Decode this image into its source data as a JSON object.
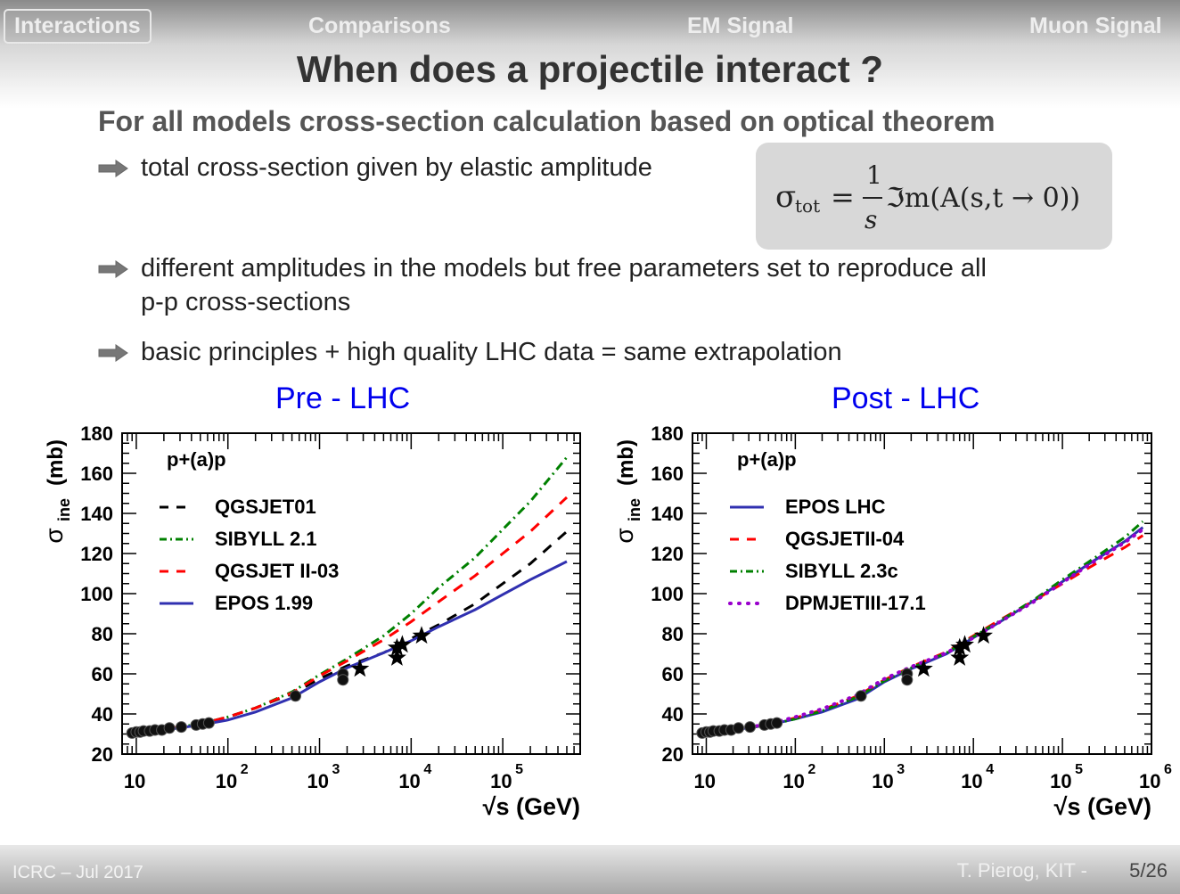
{
  "nav": {
    "items": [
      "Interactions",
      "Comparisons",
      "EM Signal",
      "Muon Signal"
    ],
    "active": "Interactions"
  },
  "slide": {
    "title": "When does a projectile interact ?",
    "subtitle": "For all models cross-section calculation based on optical theorem",
    "bullets": [
      "total cross-section given by elastic amplitude",
      "different amplitudes in the models but free parameters set to reproduce all",
      "p-p cross-sections",
      "basic principles + high quality LHC data = same extrapolation"
    ],
    "formula": {
      "lhs": "σ",
      "lhs_sub": "tot",
      "eq": "=",
      "num": "1",
      "den": "s",
      "rhs": "ℑm(A(s,t → 0))"
    }
  },
  "chart_data": [
    {
      "type": "line",
      "title": "Pre - LHC",
      "xlabel": "√s (GeV)",
      "ylabel": "σ",
      "ylabel_sub": "ine",
      "ylabel_unit": "(mb)",
      "xscale": "log",
      "xlim": [
        7,
        700000
      ],
      "ylim": [
        20,
        180
      ],
      "xticks": [
        {
          "base": "10",
          "exp": ""
        },
        {
          "base": "10",
          "exp": "2"
        },
        {
          "base": "10",
          "exp": "3"
        },
        {
          "base": "10",
          "exp": "4"
        },
        {
          "base": "10",
          "exp": "5"
        }
      ],
      "yticks": [
        20,
        40,
        60,
        80,
        100,
        120,
        140,
        160,
        180
      ],
      "legend_header": "p+(a)p",
      "legend_position": "top-left",
      "series": [
        {
          "name": "QGSJET01",
          "style": "dashed",
          "color": "#000000",
          "x": [
            10,
            20,
            50,
            100,
            200,
            500,
            1000,
            2000,
            5000,
            10000,
            20000,
            50000,
            100000,
            200000,
            500000
          ],
          "y": [
            31,
            32.5,
            35,
            38.5,
            43,
            50,
            57.5,
            64,
            70.5,
            77.5,
            84.5,
            95,
            105,
            115,
            131
          ]
        },
        {
          "name": "SIBYLL 2.1",
          "style": "dashdot",
          "color": "#008000",
          "x": [
            10,
            20,
            50,
            100,
            200,
            500,
            1000,
            2000,
            5000,
            10000,
            20000,
            50000,
            100000,
            200000,
            500000
          ],
          "y": [
            31,
            32.5,
            35,
            38.5,
            43,
            51,
            59.5,
            67.5,
            79,
            90,
            103,
            118,
            132,
            146,
            168
          ]
        },
        {
          "name": "QGSJET II-03",
          "style": "dashed",
          "color": "#ff0000",
          "x": [
            10,
            20,
            50,
            100,
            200,
            500,
            1000,
            2000,
            5000,
            10000,
            20000,
            50000,
            100000,
            200000,
            500000
          ],
          "y": [
            31,
            32.5,
            35,
            38.5,
            43,
            50.5,
            59,
            66.5,
            77,
            86,
            96,
            109,
            120,
            131,
            148
          ]
        },
        {
          "name": "EPOS 1.99",
          "style": "solid",
          "color": "#3030b0",
          "x": [
            10,
            20,
            50,
            100,
            200,
            500,
            1000,
            2000,
            5000,
            10000,
            20000,
            50000,
            100000,
            200000,
            500000
          ],
          "y": [
            31,
            32,
            34.5,
            37,
            41,
            48,
            56,
            63,
            70.5,
            76.5,
            83.5,
            92,
            99.5,
            107,
            116
          ]
        }
      ],
      "points": [
        {
          "x": 9,
          "y": 30.5
        },
        {
          "x": 10,
          "y": 31
        },
        {
          "x": 11,
          "y": 31
        },
        {
          "x": 12,
          "y": 31.5
        },
        {
          "x": 14,
          "y": 31.5
        },
        {
          "x": 16,
          "y": 32
        },
        {
          "x": 19,
          "y": 32
        },
        {
          "x": 23,
          "y": 33
        },
        {
          "x": 31,
          "y": 33.5
        },
        {
          "x": 45,
          "y": 34.5
        },
        {
          "x": 53,
          "y": 35
        },
        {
          "x": 62,
          "y": 35.5
        },
        {
          "x": 546,
          "y": 49
        },
        {
          "x": 1800,
          "y": 60
        },
        {
          "x": 1800,
          "y": 57
        }
      ],
      "stars": [
        {
          "x": 2760,
          "y": 62.5
        },
        {
          "x": 7000,
          "y": 73
        },
        {
          "x": 7000,
          "y": 68
        },
        {
          "x": 8000,
          "y": 74.5
        },
        {
          "x": 13000,
          "y": 79
        }
      ]
    },
    {
      "type": "line",
      "title": "Post - LHC",
      "xlabel": "√s (GeV)",
      "ylabel": "σ",
      "ylabel_sub": "ine",
      "ylabel_unit": "(mb)",
      "xscale": "log",
      "xlim": [
        7,
        1000000
      ],
      "ylim": [
        20,
        180
      ],
      "xticks": [
        {
          "base": "10",
          "exp": ""
        },
        {
          "base": "10",
          "exp": "2"
        },
        {
          "base": "10",
          "exp": "3"
        },
        {
          "base": "10",
          "exp": "4"
        },
        {
          "base": "10",
          "exp": "5"
        },
        {
          "base": "10",
          "exp": "6"
        }
      ],
      "yticks": [
        20,
        40,
        60,
        80,
        100,
        120,
        140,
        160,
        180
      ],
      "legend_header": "p+(a)p",
      "legend_position": "top-left",
      "series": [
        {
          "name": "EPOS LHC",
          "style": "solid",
          "color": "#3030b0",
          "x": [
            20,
            50,
            100,
            200,
            500,
            1000,
            2000,
            5000,
            10000,
            20000,
            50000,
            100000,
            200000,
            500000,
            800000
          ],
          "y": [
            32,
            34.5,
            37.5,
            41,
            47.5,
            56,
            62.5,
            70,
            78,
            86,
            97,
            106,
            115,
            126,
            133
          ]
        },
        {
          "name": "QGSJETII-04",
          "style": "dashed",
          "color": "#ff0000",
          "x": [
            20,
            50,
            100,
            200,
            500,
            1000,
            2000,
            5000,
            10000,
            20000,
            50000,
            100000,
            200000,
            500000,
            800000
          ],
          "y": [
            32,
            35,
            38,
            42,
            49,
            57,
            63.5,
            71,
            79,
            87,
            97,
            105,
            113,
            123,
            129
          ]
        },
        {
          "name": "SIBYLL 2.3c",
          "style": "dashdot",
          "color": "#008000",
          "x": [
            20,
            50,
            100,
            200,
            500,
            1000,
            2000,
            5000,
            10000,
            20000,
            50000,
            100000,
            200000,
            500000,
            800000
          ],
          "y": [
            32,
            34.5,
            37.5,
            41.5,
            48.5,
            56.5,
            63,
            70.5,
            78.5,
            86.5,
            97.5,
            107,
            116,
            128,
            136
          ]
        },
        {
          "name": "DPMJETIII-17.1",
          "style": "dotted",
          "color": "#9900cc",
          "x": [
            20,
            50,
            100,
            200,
            500,
            1000,
            2000,
            5000,
            10000,
            20000,
            50000,
            100000,
            200000,
            500000,
            800000
          ],
          "y": [
            32,
            35,
            38.5,
            42.5,
            49.5,
            57.5,
            63.5,
            70.5,
            78,
            86,
            96.5,
            105.5,
            114.5,
            125.5,
            132
          ]
        }
      ],
      "points": [
        {
          "x": 9,
          "y": 30.5
        },
        {
          "x": 10,
          "y": 31
        },
        {
          "x": 11,
          "y": 31
        },
        {
          "x": 12,
          "y": 31.5
        },
        {
          "x": 14,
          "y": 31.5
        },
        {
          "x": 16,
          "y": 32
        },
        {
          "x": 19,
          "y": 32
        },
        {
          "x": 23,
          "y": 33
        },
        {
          "x": 31,
          "y": 33.5
        },
        {
          "x": 45,
          "y": 34.5
        },
        {
          "x": 53,
          "y": 35
        },
        {
          "x": 62,
          "y": 35.5
        },
        {
          "x": 546,
          "y": 49
        },
        {
          "x": 1800,
          "y": 60
        },
        {
          "x": 1800,
          "y": 57
        }
      ],
      "stars": [
        {
          "x": 2760,
          "y": 62.5
        },
        {
          "x": 7000,
          "y": 73
        },
        {
          "x": 7000,
          "y": 68
        },
        {
          "x": 8000,
          "y": 74.5
        },
        {
          "x": 13000,
          "y": 79
        }
      ]
    }
  ],
  "footer": {
    "left": "ICRC – Jul 2017",
    "right": "T. Pierog, KIT -",
    "page": "5/26"
  }
}
